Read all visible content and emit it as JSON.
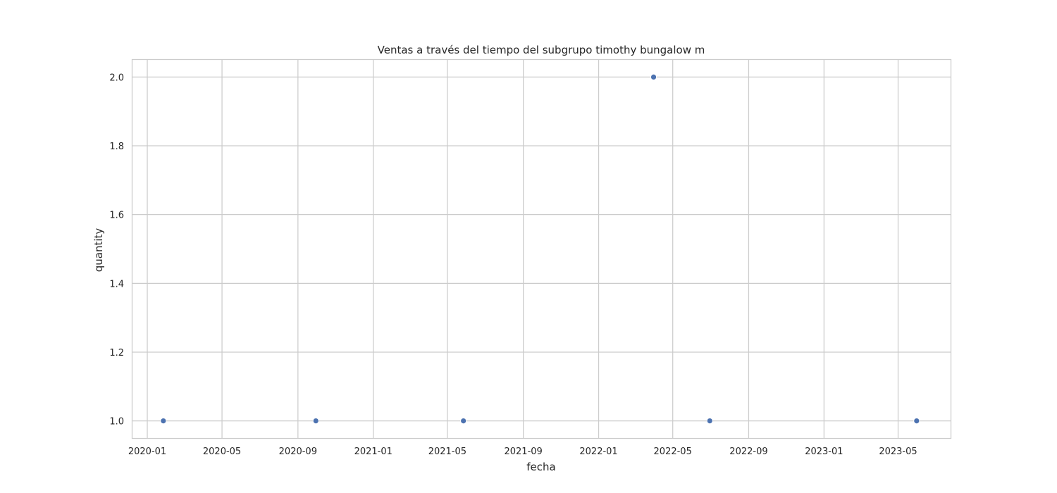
{
  "chart_data": {
    "type": "scatter",
    "title": "Ventas a través del tiempo del subgrupo timothy bungalow m",
    "xlabel": "fecha",
    "ylabel": "quantity",
    "x_scale": "date",
    "xlim": [
      "2019-12-08",
      "2023-07-25"
    ],
    "ylim": [
      0.95,
      2.05
    ],
    "x_ticks": [
      "2020-01",
      "2020-05",
      "2020-09",
      "2021-01",
      "2021-05",
      "2021-09",
      "2022-01",
      "2022-05",
      "2022-09",
      "2023-01",
      "2023-05"
    ],
    "y_ticks": [
      1.0,
      1.2,
      1.4,
      1.6,
      1.8,
      2.0
    ],
    "y_tick_labels": [
      "1.0",
      "1.2",
      "1.4",
      "1.6",
      "1.8",
      "2.0"
    ],
    "grid": true,
    "point_color": "#4c72b0",
    "points": [
      {
        "x": "2020-01-27",
        "y": 1
      },
      {
        "x": "2020-09-30",
        "y": 1
      },
      {
        "x": "2021-05-27",
        "y": 1
      },
      {
        "x": "2022-03-31",
        "y": 2
      },
      {
        "x": "2022-06-30",
        "y": 1
      },
      {
        "x": "2023-05-31",
        "y": 1
      }
    ]
  }
}
